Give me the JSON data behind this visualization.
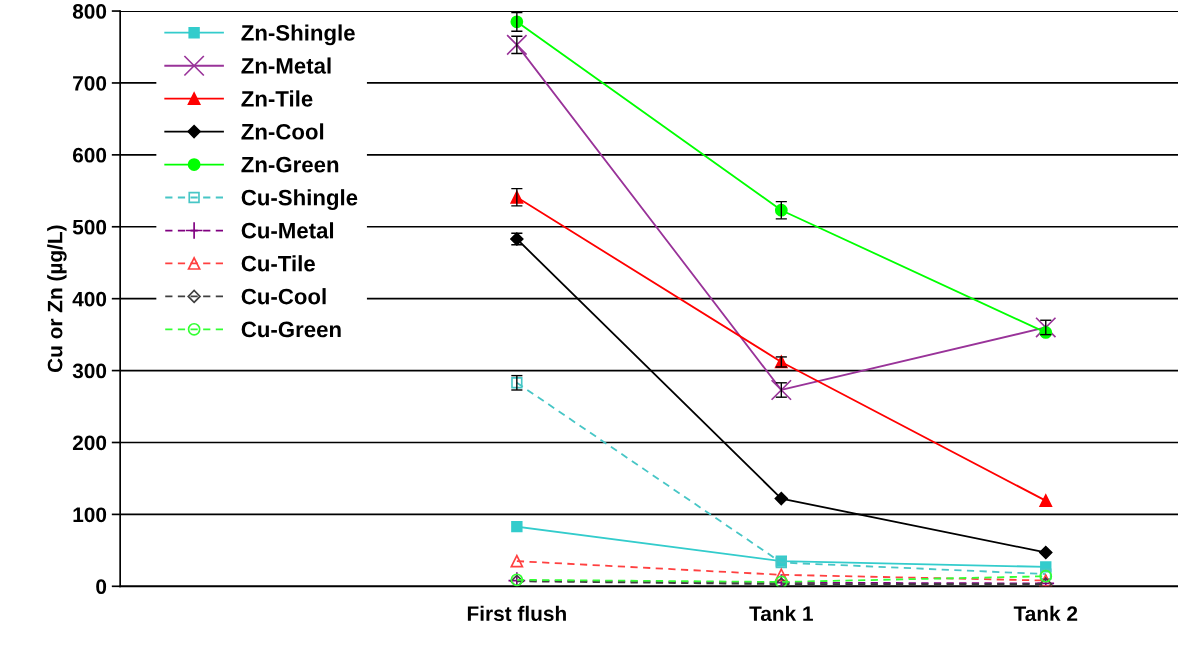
{
  "chart_data": {
    "type": "line",
    "ylabel": "Cu or Zn (µg/L)",
    "categories": [
      null,
      "First flush",
      "Tank 1",
      "Tank 2"
    ],
    "ylim": [
      0,
      800
    ],
    "yticks": [
      0,
      100,
      200,
      300,
      400,
      500,
      600,
      700,
      800
    ],
    "grid": "y",
    "legend": "top left",
    "series": [
      {
        "name": "Zn-Shingle",
        "color": "#33cccc",
        "marker": "square",
        "line_style": "solid",
        "values": [
          null,
          83,
          35,
          27
        ]
      },
      {
        "name": "Zn-Metal",
        "color": "#993399",
        "marker": "cross",
        "line_style": "solid",
        "values": [
          null,
          753,
          273,
          360
        ],
        "errors": [
          null,
          12,
          10,
          10
        ]
      },
      {
        "name": "Zn-Tile",
        "color": "#ff0000",
        "marker": "triangle",
        "line_style": "solid",
        "values": [
          null,
          541,
          312,
          119
        ],
        "errors": [
          null,
          12,
          7,
          null
        ]
      },
      {
        "name": "Zn-Cool",
        "color": "#000000",
        "marker": "diamond",
        "line_style": "solid",
        "values": [
          null,
          483,
          122,
          47
        ],
        "errors": [
          null,
          8,
          null,
          null
        ]
      },
      {
        "name": "Zn-Green",
        "color": "#00ff00",
        "marker": "circle",
        "line_style": "solid",
        "values": [
          null,
          785,
          523,
          353
        ],
        "errors": [
          null,
          13,
          12,
          null
        ]
      },
      {
        "name": "Cu-Shingle",
        "color": "#47c6c6",
        "marker": "square",
        "line_style": "dashed",
        "values": [
          null,
          283,
          33,
          17
        ],
        "errors": [
          null,
          10,
          null,
          null
        ]
      },
      {
        "name": "Cu-Metal",
        "color": "#800080",
        "marker": "plus",
        "line_style": "dashed",
        "values": [
          null,
          8,
          5,
          4
        ]
      },
      {
        "name": "Cu-Tile",
        "color": "#ff4040",
        "marker": "triangle",
        "line_style": "dashed",
        "values": [
          null,
          35,
          16,
          8
        ]
      },
      {
        "name": "Cu-Cool",
        "color": "#404040",
        "marker": "diamond",
        "line_style": "dashed",
        "values": [
          null,
          7,
          3,
          3
        ]
      },
      {
        "name": "Cu-Green",
        "color": "#33ff33",
        "marker": "circle",
        "line_style": "dashed",
        "values": [
          null,
          9,
          6,
          14
        ]
      }
    ]
  }
}
